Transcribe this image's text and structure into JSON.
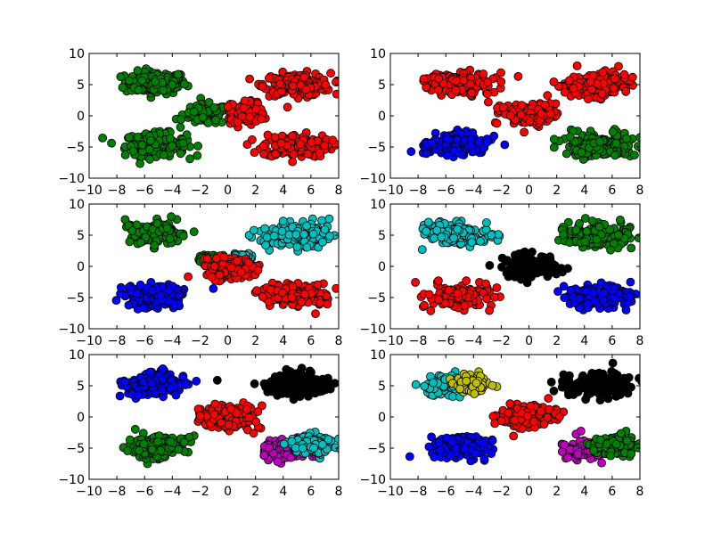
{
  "chart_data": [
    {
      "type": "scatter",
      "xlim": [
        -10,
        8
      ],
      "ylim": [
        -10,
        10
      ],
      "xticks": [
        "−10",
        "−8",
        "−6",
        "−4",
        "−2",
        "0",
        "2",
        "4",
        "6",
        "8"
      ],
      "yticks": [
        "−10",
        "−5",
        "0",
        "5",
        "10"
      ],
      "grid": false,
      "series": [
        {
          "color": "#008000",
          "clusters": [
            {
              "cx": -5.2,
              "cy": 5.3,
              "sx": 1.1,
              "sy": 0.9
            },
            {
              "cx": -5.2,
              "cy": -4.6,
              "sx": 1.1,
              "sy": 0.9
            },
            {
              "cx": -1.6,
              "cy": 0.2,
              "sx": 0.8,
              "sy": 0.8,
              "x_max": 0
            }
          ]
        },
        {
          "color": "#ff0000",
          "clusters": [
            {
              "cx": 5.0,
              "cy": 5.0,
              "sx": 1.2,
              "sy": 0.9
            },
            {
              "cx": 4.9,
              "cy": -4.8,
              "sx": 1.2,
              "sy": 0.9
            },
            {
              "cx": 1.0,
              "cy": 0.4,
              "sx": 0.8,
              "sy": 0.9,
              "x_min": 0
            }
          ]
        }
      ]
    },
    {
      "type": "scatter",
      "xlim": [
        -10,
        8
      ],
      "ylim": [
        -10,
        10
      ],
      "xticks": [
        "−10",
        "−8",
        "−6",
        "−4",
        "−2",
        "0",
        "2",
        "4",
        "6",
        "8"
      ],
      "yticks": [
        "−10",
        "−5",
        "0",
        "5",
        "10"
      ],
      "grid": false,
      "series": [
        {
          "color": "#ff0000",
          "clusters": [
            {
              "cx": -5.0,
              "cy": 5.2,
              "sx": 1.2,
              "sy": 0.9
            },
            {
              "cx": 5.0,
              "cy": 5.0,
              "sx": 1.2,
              "sy": 0.9
            },
            {
              "cx": 0.0,
              "cy": 0.2,
              "sx": 1.0,
              "sy": 0.9
            }
          ]
        },
        {
          "color": "#0000ff",
          "clusters": [
            {
              "cx": -5.2,
              "cy": -4.7,
              "sx": 1.1,
              "sy": 0.9
            }
          ]
        },
        {
          "color": "#008000",
          "clusters": [
            {
              "cx": 5.0,
              "cy": -4.7,
              "sx": 1.2,
              "sy": 0.9
            }
          ]
        }
      ]
    },
    {
      "type": "scatter",
      "xlim": [
        -10,
        8
      ],
      "ylim": [
        -10,
        10
      ],
      "xticks": [
        "−10",
        "−8",
        "−6",
        "−4",
        "−2",
        "0",
        "2",
        "4",
        "6",
        "8"
      ],
      "yticks": [
        "−10",
        "−5",
        "0",
        "5",
        "10"
      ],
      "grid": false,
      "series": [
        {
          "color": "#008000",
          "clusters": [
            {
              "cx": -5.2,
              "cy": 5.3,
              "sx": 1.1,
              "sy": 0.9
            },
            {
              "cx": -1.2,
              "cy": 1.3,
              "sx": 0.6,
              "sy": 0.4
            }
          ]
        },
        {
          "color": "#00bfbf",
          "clusters": [
            {
              "cx": 4.9,
              "cy": 5.0,
              "sx": 1.2,
              "sy": 0.9
            },
            {
              "cx": 1.2,
              "cy": 1.6,
              "sx": 0.4,
              "sy": 0.3
            }
          ]
        },
        {
          "color": "#ff0000",
          "clusters": [
            {
              "cx": 0.2,
              "cy": -0.3,
              "sx": 0.9,
              "sy": 0.8
            },
            {
              "cx": 5.0,
              "cy": -4.8,
              "sx": 1.2,
              "sy": 0.9
            }
          ]
        },
        {
          "color": "#0000ff",
          "clusters": [
            {
              "cx": -5.2,
              "cy": -4.7,
              "sx": 1.1,
              "sy": 0.9
            }
          ]
        }
      ]
    },
    {
      "type": "scatter",
      "xlim": [
        -10,
        8
      ],
      "ylim": [
        -10,
        10
      ],
      "xticks": [
        "−10",
        "−8",
        "−6",
        "−4",
        "−2",
        "0",
        "2",
        "4",
        "6",
        "8"
      ],
      "yticks": [
        "−10",
        "−5",
        "0",
        "5",
        "10"
      ],
      "grid": false,
      "series": [
        {
          "color": "#00bfbf",
          "clusters": [
            {
              "cx": -5.2,
              "cy": 5.2,
              "sx": 1.1,
              "sy": 0.9
            }
          ]
        },
        {
          "color": "#008000",
          "clusters": [
            {
              "cx": 5.0,
              "cy": 5.0,
              "sx": 1.2,
              "sy": 0.9
            }
          ]
        },
        {
          "color": "#000000",
          "clusters": [
            {
              "cx": 0.0,
              "cy": 0.0,
              "sx": 1.0,
              "sy": 0.9
            }
          ]
        },
        {
          "color": "#ff0000",
          "clusters": [
            {
              "cx": -5.2,
              "cy": -4.8,
              "sx": 1.1,
              "sy": 0.9
            }
          ]
        },
        {
          "color": "#0000ff",
          "clusters": [
            {
              "cx": 5.0,
              "cy": -4.7,
              "sx": 1.2,
              "sy": 0.9
            }
          ]
        }
      ]
    },
    {
      "type": "scatter",
      "xlim": [
        -10,
        8
      ],
      "ylim": [
        -10,
        10
      ],
      "xticks": [
        "−10",
        "−8",
        "−6",
        "−4",
        "−2",
        "0",
        "2",
        "4",
        "6",
        "8"
      ],
      "yticks": [
        "−10",
        "−5",
        "0",
        "5",
        "10"
      ],
      "grid": false,
      "series": [
        {
          "color": "#0000ff",
          "clusters": [
            {
              "cx": -5.2,
              "cy": 5.2,
              "sx": 1.1,
              "sy": 0.9
            }
          ]
        },
        {
          "color": "#000000",
          "clusters": [
            {
              "cx": 5.0,
              "cy": 5.2,
              "sx": 1.2,
              "sy": 0.9
            }
          ]
        },
        {
          "color": "#ff0000",
          "clusters": [
            {
              "cx": 0.0,
              "cy": 0.0,
              "sx": 1.0,
              "sy": 0.9
            }
          ]
        },
        {
          "color": "#008000",
          "clusters": [
            {
              "cx": -5.2,
              "cy": -4.8,
              "sx": 1.1,
              "sy": 0.9
            }
          ]
        },
        {
          "color": "#bf00bf",
          "clusters": [
            {
              "cx": 4.2,
              "cy": -5.3,
              "sx": 0.8,
              "sy": 0.8
            }
          ]
        },
        {
          "color": "#00bfbf",
          "clusters": [
            {
              "cx": 6.1,
              "cy": -4.5,
              "sx": 0.8,
              "sy": 0.8
            }
          ]
        }
      ]
    },
    {
      "type": "scatter",
      "xlim": [
        -10,
        8
      ],
      "ylim": [
        -10,
        10
      ],
      "xticks": [
        "−10",
        "−8",
        "−6",
        "−4",
        "−2",
        "0",
        "2",
        "4",
        "6",
        "8"
      ],
      "yticks": [
        "−10",
        "−5",
        "0",
        "5",
        "10"
      ],
      "grid": false,
      "series": [
        {
          "color": "#00bfbf",
          "clusters": [
            {
              "cx": -6.3,
              "cy": 5.0,
              "sx": 0.7,
              "sy": 0.9
            }
          ]
        },
        {
          "color": "#bfbf00",
          "clusters": [
            {
              "cx": -4.1,
              "cy": 5.4,
              "sx": 0.6,
              "sy": 0.8
            }
          ]
        },
        {
          "color": "#000000",
          "clusters": [
            {
              "cx": 5.0,
              "cy": 5.2,
              "sx": 1.2,
              "sy": 0.9
            }
          ]
        },
        {
          "color": "#ff0000",
          "clusters": [
            {
              "cx": 0.0,
              "cy": 0.0,
              "sx": 1.0,
              "sy": 0.9
            }
          ]
        },
        {
          "color": "#0000ff",
          "clusters": [
            {
              "cx": -5.2,
              "cy": -4.8,
              "sx": 1.1,
              "sy": 0.9
            }
          ]
        },
        {
          "color": "#bf00bf",
          "clusters": [
            {
              "cx": 4.2,
              "cy": -5.3,
              "sx": 0.8,
              "sy": 0.8
            }
          ]
        },
        {
          "color": "#008000",
          "clusters": [
            {
              "cx": 6.1,
              "cy": -4.5,
              "sx": 0.8,
              "sy": 0.8
            }
          ]
        }
      ]
    }
  ]
}
